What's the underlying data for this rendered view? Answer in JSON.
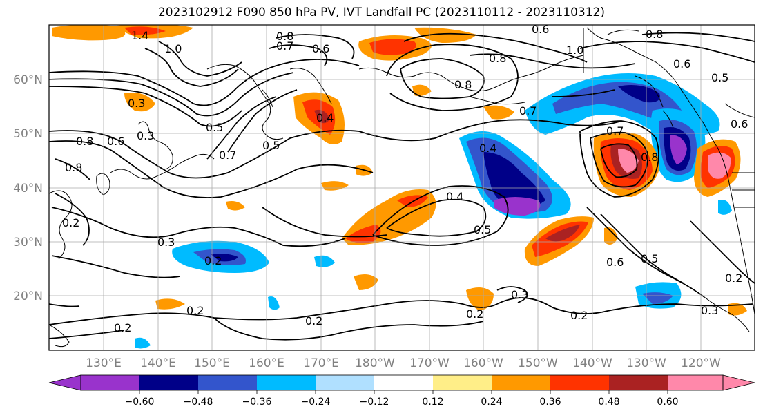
{
  "title": "2023102912 F090 850 hPa PV, IVT Landfall PC (2023110112 - 2023110312)",
  "map": {
    "lat_labels": [
      "60°N",
      "50°N",
      "40°N",
      "30°N",
      "20°N"
    ],
    "lon_labels": [
      "130°E",
      "140°E",
      "150°E",
      "160°E",
      "170°E",
      "180°W",
      "170°W",
      "160°W",
      "150°W",
      "140°W",
      "130°W",
      "120°W"
    ],
    "contour_labels": [
      "1.4",
      "1.0",
      "0.8",
      "0.7",
      "0.6",
      "0.6",
      "0.8",
      "0.6",
      "0.5",
      "0.8",
      "0.8",
      "0.7",
      "0.4",
      "0.4",
      "0.5",
      "0.3",
      "0.3",
      "0.5",
      "0.7",
      "0.8",
      "0.6",
      "0.2",
      "0.2",
      "0.7",
      "0.8",
      "0.4",
      "0.5",
      "0.3",
      "0.2",
      "0.2",
      "0.2",
      "0.2",
      "0.3",
      "0.6",
      "0.5",
      "0.2",
      "0.2",
      "0.3",
      "0.6",
      "0.8",
      "1.0"
    ]
  },
  "colorbar": {
    "ticks": [
      "−0.60",
      "−0.48",
      "−0.36",
      "−0.24",
      "−0.12",
      "0.12",
      "0.24",
      "0.36",
      "0.48",
      "0.60"
    ],
    "colors": [
      "#9933cc",
      "#000088",
      "#3355cc",
      "#00bbff",
      "#b0e0ff",
      "#ffffff",
      "#ffee88",
      "#ff9900",
      "#ff3300",
      "#aa2222",
      "#ff88aa"
    ]
  }
}
